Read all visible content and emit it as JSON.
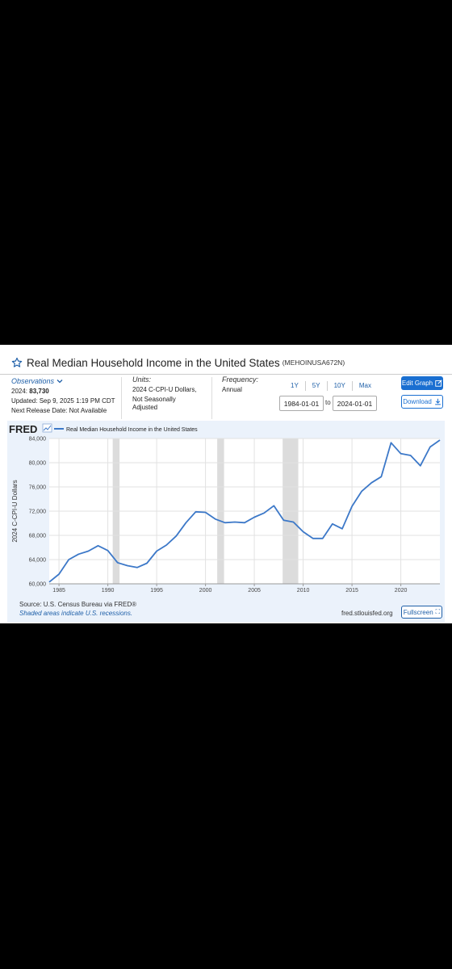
{
  "header": {
    "title": "Real Median Household Income in the United States",
    "series_id": "(MEHOINUSA672N)"
  },
  "observations": {
    "label": "Observations",
    "latest_label": "2024:",
    "latest_value": "83,730",
    "updated": "Updated: Sep 9, 2025 1:19 PM CDT",
    "next_release": "Next Release Date: Not Available"
  },
  "units": {
    "label": "Units:",
    "line1": "2024 C-CPI-U Dollars,",
    "line2": "Not Seasonally",
    "line3": "Adjusted"
  },
  "frequency": {
    "label": "Frequency:",
    "value": "Annual"
  },
  "range_buttons": [
    "1Y",
    "5Y",
    "10Y",
    "Max"
  ],
  "date_range": {
    "start": "1984-01-01",
    "to_label": "to",
    "end": "2024-01-01"
  },
  "buttons": {
    "edit": "Edit Graph",
    "download": "Download",
    "fullscreen": "Fullscreen"
  },
  "chart_footer": {
    "logo": "FRED",
    "source": "Source: U.S. Census Bureau via FRED®",
    "recession_note": "Shaded areas indicate U.S. recessions.",
    "site": "fred.stlouisfed.org"
  },
  "colors": {
    "line": "#3c78c8",
    "accent": "#1a6fd1",
    "recession": "#dcdcdc",
    "panel_bg": "#ebf2fb"
  },
  "chart_data": {
    "type": "line",
    "legend": "Real Median Household Income in the United States",
    "ylabel": "2024 C-CPI-U Dollars",
    "xlabel": "",
    "ylim": [
      60000,
      84000
    ],
    "xlim": [
      1984,
      2024
    ],
    "x_ticks": [
      1985,
      1990,
      1995,
      2000,
      2005,
      2010,
      2015,
      2020
    ],
    "y_ticks": [
      60000,
      64000,
      68000,
      72000,
      76000,
      80000,
      84000
    ],
    "y_tick_labels": [
      "60,000",
      "64,000",
      "68,000",
      "72,000",
      "76,000",
      "80,000",
      "84,000"
    ],
    "recessions": [
      [
        1990.5,
        1991.2
      ],
      [
        2001.2,
        2001.9
      ],
      [
        2007.9,
        2009.5
      ]
    ],
    "grid": true,
    "x": [
      1984,
      1985,
      1986,
      1987,
      1988,
      1989,
      1990,
      1991,
      1992,
      1993,
      1994,
      1995,
      1996,
      1997,
      1998,
      1999,
      2000,
      2001,
      2002,
      2003,
      2004,
      2005,
      2006,
      2007,
      2008,
      2009,
      2010,
      2011,
      2012,
      2013,
      2014,
      2015,
      2016,
      2017,
      2018,
      2019,
      2020,
      2021,
      2022,
      2023,
      2024
    ],
    "series": [
      {
        "name": "Real Median Household Income in the United States",
        "values": [
          60300,
          61600,
          64000,
          64900,
          65400,
          66300,
          65500,
          63500,
          63000,
          62700,
          63400,
          65400,
          66400,
          67900,
          70100,
          71900,
          71800,
          70700,
          70100,
          70200,
          70100,
          71000,
          71700,
          72900,
          70500,
          70200,
          68600,
          67500,
          67500,
          69900,
          69100,
          72800,
          75300,
          76700,
          77700,
          83300,
          81500,
          81200,
          79500,
          82600,
          83730
        ]
      }
    ]
  }
}
